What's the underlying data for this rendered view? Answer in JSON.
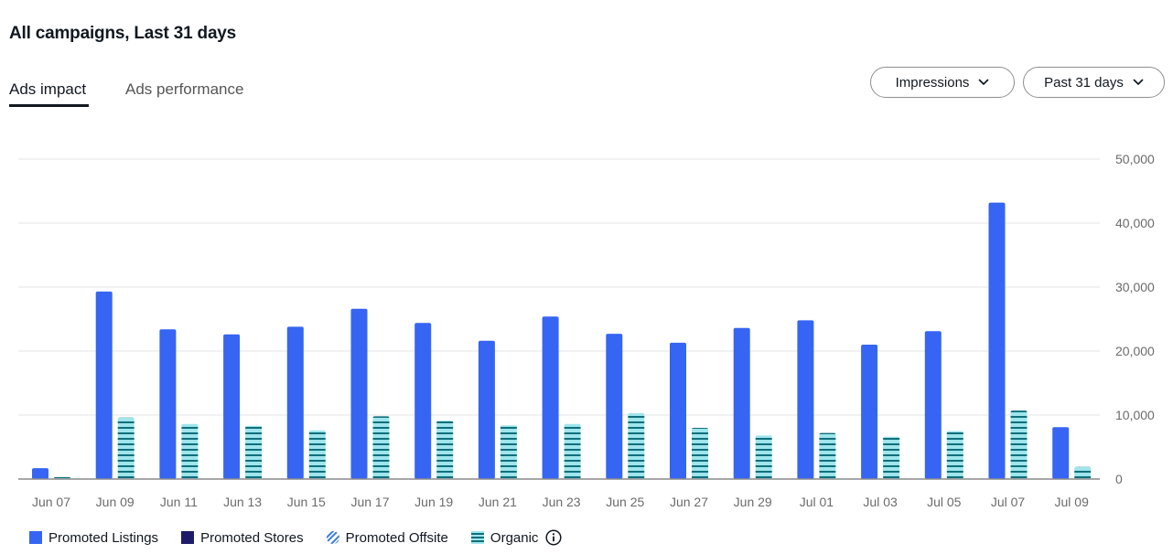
{
  "page": {
    "title": "All campaigns, Last 31 days"
  },
  "tabs": [
    {
      "label": "Ads impact",
      "active": true
    },
    {
      "label": "Ads performance",
      "active": false
    }
  ],
  "controls": {
    "metric_dropdown": {
      "label": "Impressions",
      "icon": "chevron-down-icon"
    },
    "range_dropdown": {
      "label": "Past 31 days",
      "icon": "chevron-down-icon"
    }
  },
  "colors": {
    "promoted_listings": "#3665f3",
    "promoted_stores": "#1f1b6b",
    "promoted_offsite": "#3a7ce0",
    "organic_fill": "#9fe5ec",
    "organic_stripe": "#0f6f7c",
    "grid": "#e5e5e5",
    "axis_text": "#6b6b6b"
  },
  "legend": [
    {
      "label": "Promoted Listings",
      "key": "promoted_listings"
    },
    {
      "label": "Promoted Stores",
      "key": "promoted_stores"
    },
    {
      "label": "Promoted Offsite",
      "key": "promoted_offsite"
    },
    {
      "label": "Organic",
      "key": "organic",
      "info_icon": "info-icon"
    }
  ],
  "chart_data": {
    "type": "bar",
    "categories": [
      "Jun 07",
      "Jun 09",
      "Jun 11",
      "Jun 13",
      "Jun 15",
      "Jun 17",
      "Jun 19",
      "Jun 21",
      "Jun 23",
      "Jun 25",
      "Jun 27",
      "Jun 29",
      "Jul 01",
      "Jul 03",
      "Jul 05",
      "Jul 07",
      "Jul 09"
    ],
    "series": [
      {
        "name": "Promoted Listings",
        "values": [
          1700,
          29300,
          23400,
          22600,
          23800,
          26600,
          24400,
          21600,
          25400,
          22700,
          21300,
          23600,
          24800,
          21000,
          23100,
          43200,
          8100
        ]
      },
      {
        "name": "Promoted Stores",
        "values": [
          0,
          0,
          0,
          0,
          0,
          0,
          0,
          0,
          0,
          0,
          0,
          0,
          0,
          0,
          0,
          0,
          0
        ]
      },
      {
        "name": "Promoted Offsite",
        "values": [
          0,
          0,
          0,
          0,
          0,
          0,
          0,
          0,
          0,
          0,
          0,
          0,
          0,
          0,
          0,
          0,
          0
        ]
      },
      {
        "name": "Organic",
        "values": [
          300,
          9600,
          8600,
          8300,
          7600,
          9800,
          9100,
          8400,
          8600,
          10300,
          8000,
          6800,
          7200,
          6600,
          7500,
          10700,
          1900
        ]
      }
    ],
    "yticks": [
      "0",
      "10,000",
      "20,000",
      "30,000",
      "40,000",
      "50,000"
    ],
    "ylim": [
      0,
      50000
    ],
    "grid": true,
    "y_axis_position": "right",
    "legend_position": "bottom-left"
  }
}
